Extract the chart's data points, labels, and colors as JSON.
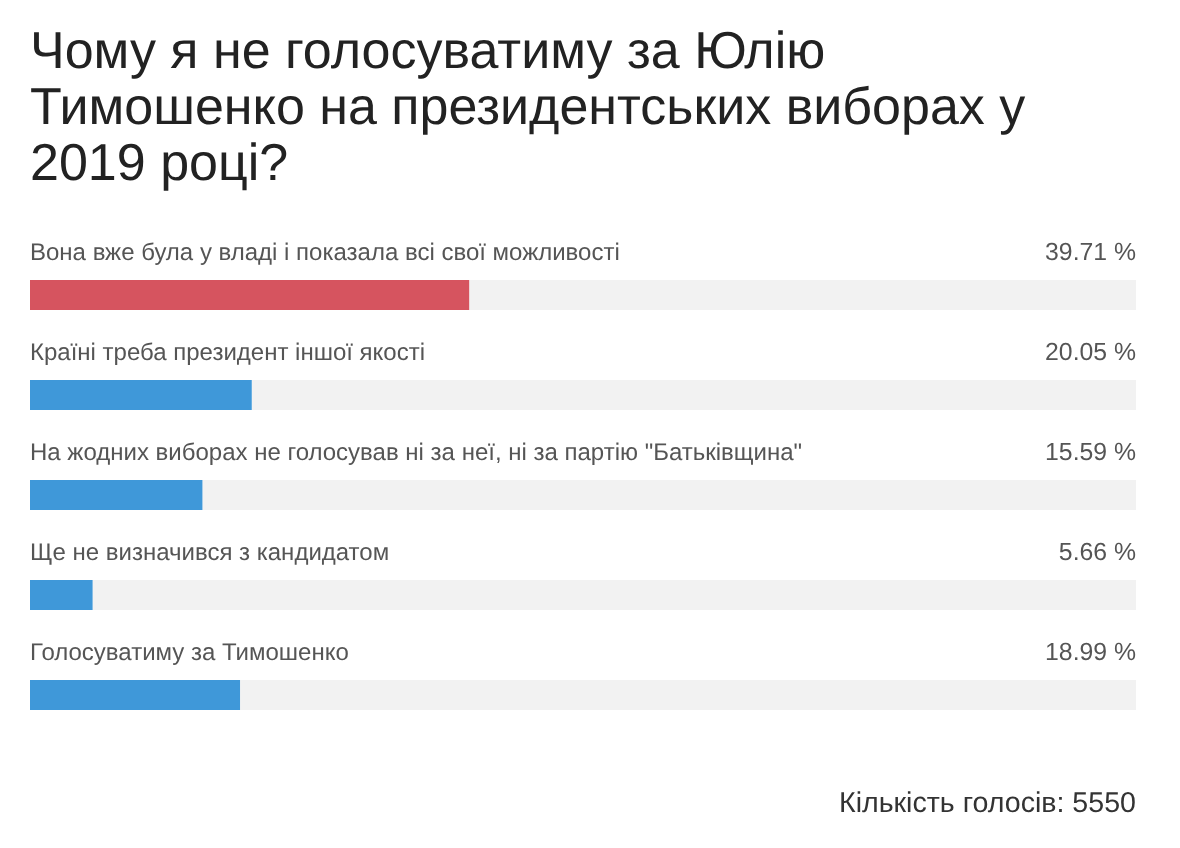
{
  "chart_data": {
    "type": "bar",
    "orientation": "horizontal",
    "title": "Чому я не голосуватиму за Юлію Тимошенко на президентських виборах у 2019 році?",
    "categories": [
      "Вона вже була у владі і показала всі свої можливості",
      "Країні треба президент іншої якості",
      "На жодних виборах не голосував ні за неї, ні за партію \"Батьківщина\"",
      "Ще не визначився з кандидатом",
      "Голосуватиму за Тимошенко"
    ],
    "values": [
      39.71,
      20.05,
      15.59,
      5.66,
      18.99
    ],
    "colors": [
      "#d6545f",
      "#3f98d9",
      "#3f98d9",
      "#3f98d9",
      "#3f98d9"
    ],
    "value_labels": [
      "39.71 %",
      "20.05 %",
      "15.59 %",
      "5.66 %",
      "18.99 %"
    ],
    "xlim": [
      0,
      100
    ],
    "annotations": [
      "Кількість голосів: 5550"
    ]
  }
}
